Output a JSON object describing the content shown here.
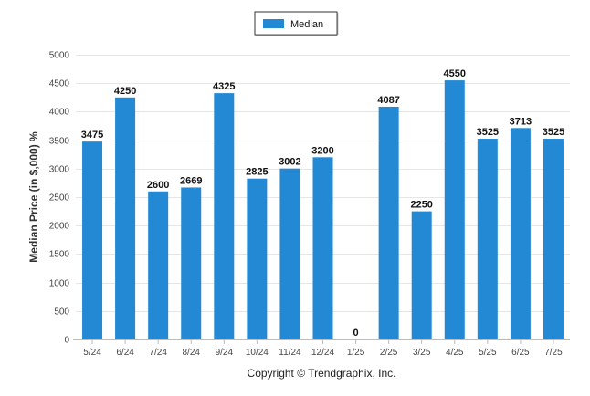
{
  "legend": {
    "label": "Median"
  },
  "footer": {
    "copyright": "Copyright © Trendgraphix, Inc."
  },
  "colors": {
    "bar": "#2389d4",
    "grid": "#e6e6e6",
    "axis": "#bdbdbd",
    "legend_border": "#333333"
  },
  "chart_data": {
    "type": "bar",
    "ylabel": "Median Price (in $,000) %",
    "ylim": [
      0,
      5000
    ],
    "yticks": [
      0,
      500,
      1000,
      1500,
      2000,
      2500,
      3000,
      3500,
      4000,
      4500,
      5000
    ],
    "grid": true,
    "legend_position": "top-center",
    "categories": [
      "5/24",
      "6/24",
      "7/24",
      "8/24",
      "9/24",
      "10/24",
      "11/24",
      "12/24",
      "1/25",
      "2/25",
      "3/25",
      "4/25",
      "5/25",
      "6/25",
      "7/25"
    ],
    "series": [
      {
        "name": "Median",
        "values": [
          3475,
          4250,
          2600,
          2669,
          4325,
          2825,
          3002,
          3200,
          0,
          4087,
          2250,
          4550,
          3525,
          3713,
          3525
        ]
      }
    ]
  }
}
